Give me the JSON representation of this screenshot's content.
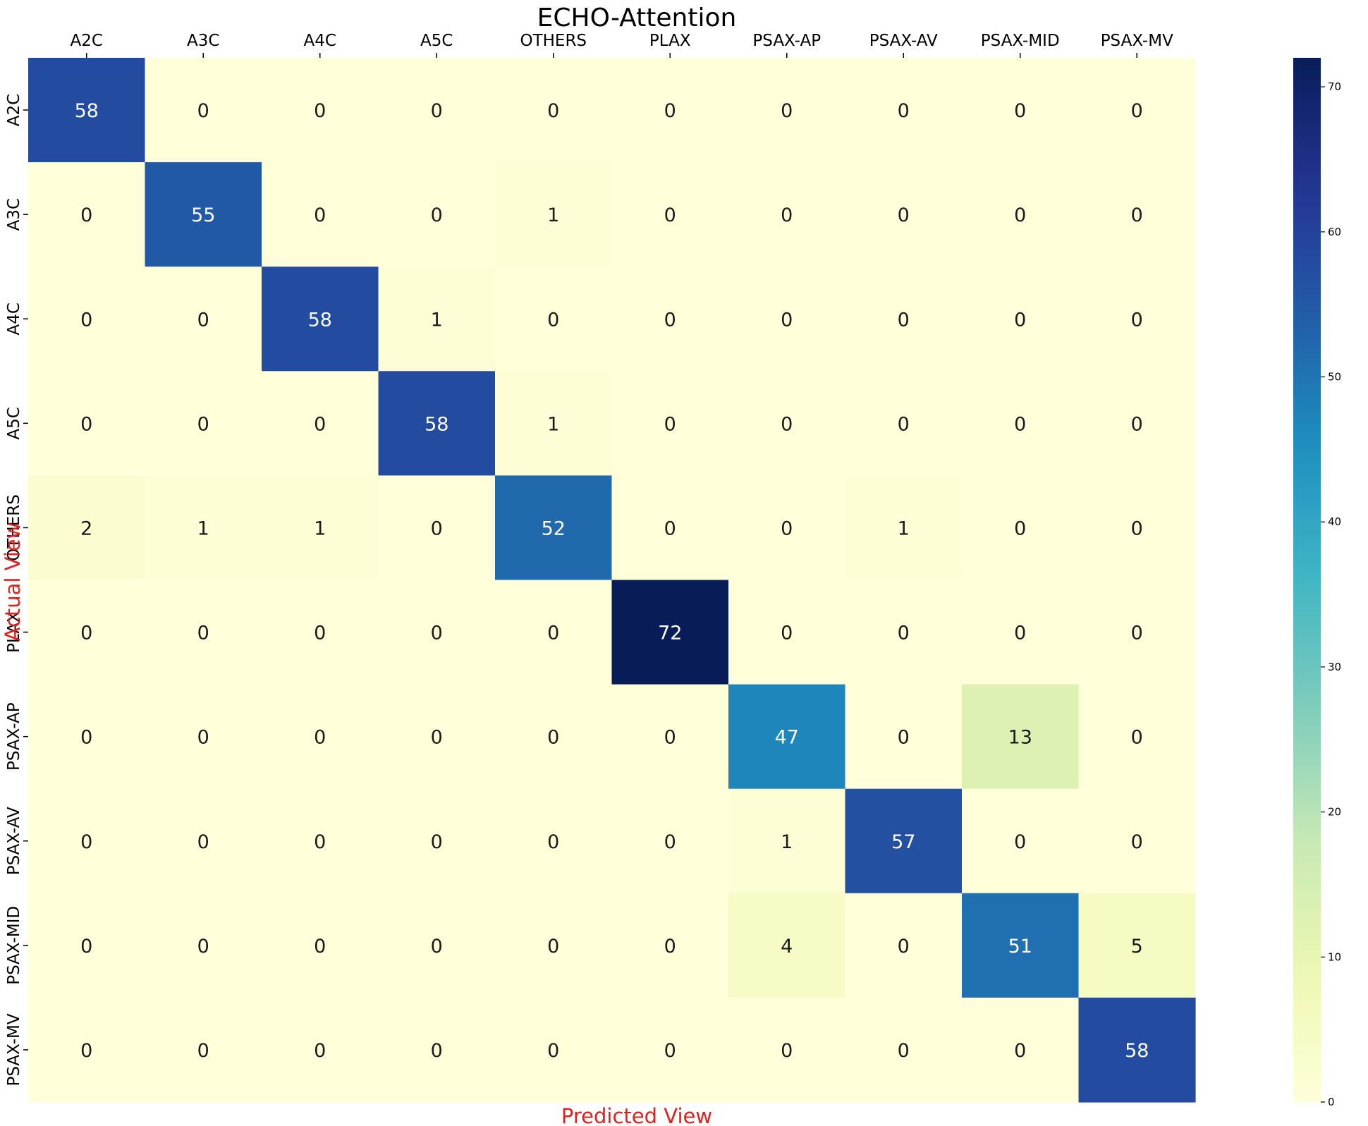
{
  "chart_data": {
    "type": "heatmap",
    "title": "ECHO-Attention",
    "xlabel": "Predicted View",
    "ylabel": "Actual View",
    "axis_label_color": "#e0201c",
    "x_categories": [
      "A2C",
      "A3C",
      "A4C",
      "A5C",
      "OTHERS",
      "PLAX",
      "PSAX-AP",
      "PSAX-AV",
      "PSAX-MID",
      "PSAX-MV"
    ],
    "y_categories": [
      "A2C",
      "A3C",
      "A4C",
      "A5C",
      "OTHERS",
      "PLAX",
      "PSAX-AP",
      "PSAX-AV",
      "PSAX-MID",
      "PSAX-MV"
    ],
    "values": [
      [
        58,
        0,
        0,
        0,
        0,
        0,
        0,
        0,
        0,
        0
      ],
      [
        0,
        55,
        0,
        0,
        1,
        0,
        0,
        0,
        0,
        0
      ],
      [
        0,
        0,
        58,
        1,
        0,
        0,
        0,
        0,
        0,
        0
      ],
      [
        0,
        0,
        0,
        58,
        1,
        0,
        0,
        0,
        0,
        0
      ],
      [
        2,
        1,
        1,
        0,
        52,
        0,
        0,
        1,
        0,
        0
      ],
      [
        0,
        0,
        0,
        0,
        0,
        72,
        0,
        0,
        0,
        0
      ],
      [
        0,
        0,
        0,
        0,
        0,
        0,
        47,
        0,
        13,
        0
      ],
      [
        0,
        0,
        0,
        0,
        0,
        0,
        1,
        57,
        0,
        0
      ],
      [
        0,
        0,
        0,
        0,
        0,
        0,
        4,
        0,
        51,
        5
      ],
      [
        0,
        0,
        0,
        0,
        0,
        0,
        0,
        0,
        0,
        58
      ]
    ],
    "colormap": "YlGnBu",
    "colorbar": {
      "range": [
        0,
        72
      ],
      "ticks": [
        0,
        10,
        20,
        30,
        40,
        50,
        60,
        70
      ]
    },
    "x_tick_position": "top",
    "grid": false
  }
}
